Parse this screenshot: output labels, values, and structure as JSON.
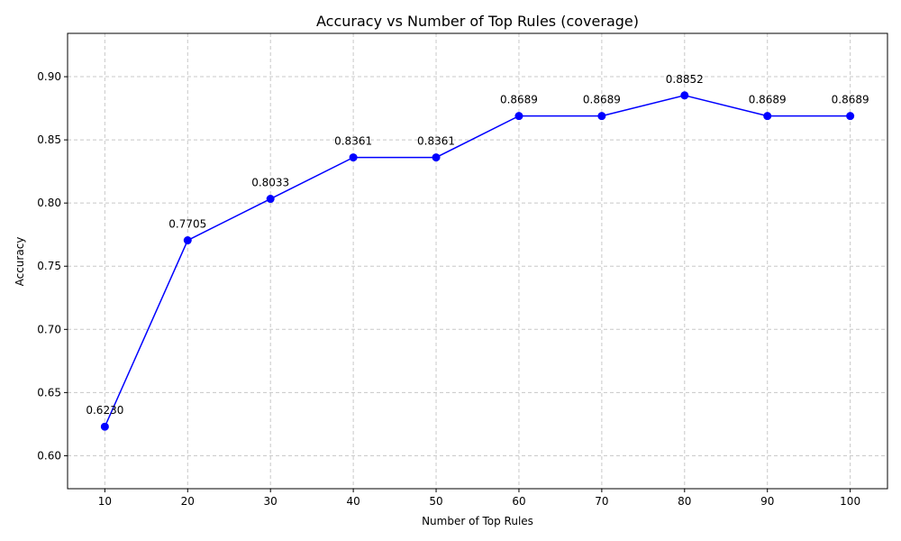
{
  "chart_data": {
    "type": "line",
    "title": "Accuracy vs Number of Top Rules (coverage)",
    "xlabel": "Number of Top Rules",
    "ylabel": "Accuracy",
    "x": [
      10,
      20,
      30,
      40,
      50,
      60,
      70,
      80,
      90,
      100
    ],
    "series": [
      {
        "values": [
          0.623,
          0.7705,
          0.8033,
          0.8361,
          0.8361,
          0.8689,
          0.8689,
          0.8852,
          0.8689,
          0.8689
        ],
        "data_labels": [
          "0.6230",
          "0.7705",
          "0.8033",
          "0.8361",
          "0.8361",
          "0.8689",
          "0.8689",
          "0.8852",
          "0.8689",
          "0.8689"
        ],
        "color": "#0000ff",
        "marker": "circle"
      }
    ],
    "xticks": [
      "10",
      "20",
      "30",
      "40",
      "50",
      "60",
      "70",
      "80",
      "90",
      "100"
    ],
    "yticks": [
      "0.60",
      "0.65",
      "0.70",
      "0.75",
      "0.80",
      "0.85",
      "0.90"
    ],
    "xlim": [
      5.5,
      104.5
    ],
    "ylim": [
      0.5739,
      0.9343
    ],
    "grid": true,
    "grid_style": "dashed",
    "grid_color": "#c8c8c8"
  }
}
